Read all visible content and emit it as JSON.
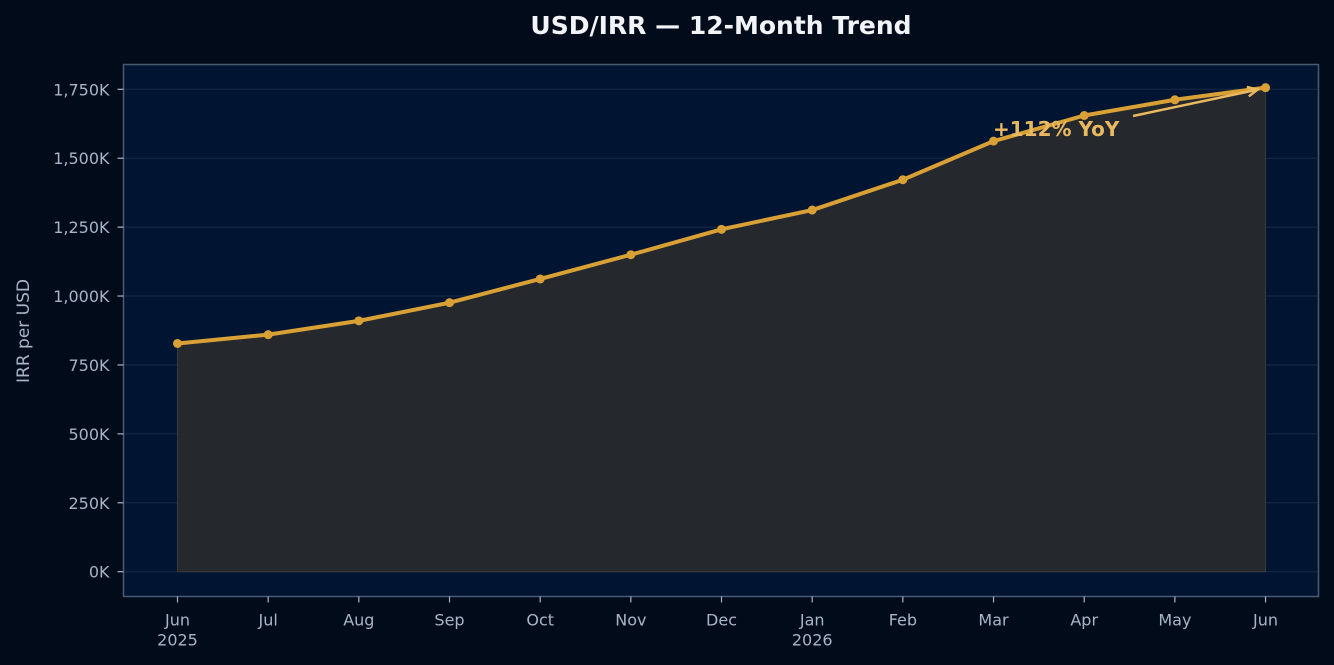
{
  "chart_data": {
    "type": "area",
    "title": "USD/IRR — 12-Month Trend",
    "xlabel": "",
    "ylabel": "IRR per USD",
    "categories": [
      "Jun\n2025",
      "Jul",
      "Aug",
      "Sep",
      "Oct",
      "Nov",
      "Dec",
      "Jan\n2026",
      "Feb",
      "Mar",
      "Apr",
      "May",
      "Jun"
    ],
    "series": [
      {
        "values": [
          828000,
          860000,
          910000,
          976000,
          1062000,
          1150000,
          1242000,
          1312000,
          1422000,
          1562000,
          1655000,
          1712000,
          1756000
        ]
      }
    ],
    "ylim": [
      -90000,
      1840000
    ],
    "yticks": [
      0,
      250000,
      500000,
      750000,
      1000000,
      1250000,
      1500000,
      1750000
    ],
    "ytick_labels": [
      "0K",
      "250K",
      "500K",
      "750K",
      "1,000K",
      "1,250K",
      "1,500K",
      "1,750K"
    ],
    "grid": true,
    "legend": "none",
    "annotation": {
      "text": "+112% YoY",
      "target_index": 12
    },
    "colors": {
      "background": "#010b1a",
      "plot_background": "#011533",
      "line": "#d9a036",
      "fill": "#2b2b2b",
      "annotation": "#e8b960",
      "grid": "#1a2a44",
      "frame": "#4a5a72",
      "text": "#a9b4c6",
      "title": "#f2f4f8"
    }
  }
}
